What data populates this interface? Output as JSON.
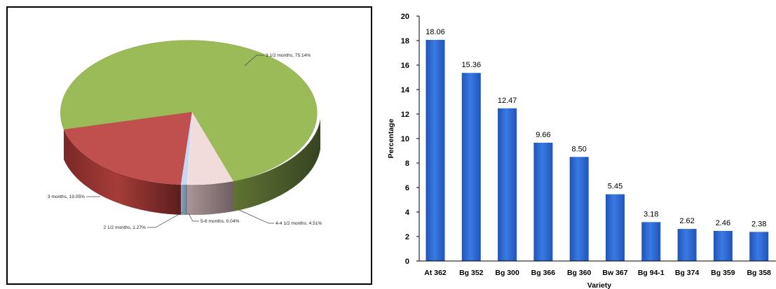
{
  "chart_data": [
    {
      "type": "pie",
      "title": "",
      "slices": [
        {
          "label": "3 1/2 months, 75.14%",
          "value": 75.14,
          "color": "#9BBB59"
        },
        {
          "label": "4-4 1/2 months, 4.51%",
          "value": 4.51,
          "color": "#F2DCDB"
        },
        {
          "label": "5-6 months, 0.04%",
          "value": 0.04,
          "color": "#EEECE1"
        },
        {
          "label": "2 1/2 months, 1.27%",
          "value": 1.27,
          "color": "#C6D9F1"
        },
        {
          "label": "3 months, 19.05%",
          "value": 19.05,
          "color": "#C0504D"
        }
      ],
      "style": "3d"
    },
    {
      "type": "bar",
      "title": "",
      "categories": [
        "At 362",
        "Bg 352",
        "Bg 300",
        "Bg 366",
        "Bg 360",
        "Bw 367",
        "Bg 94-1",
        "Bg 374",
        "Bg 359",
        "Bg 358"
      ],
      "values": [
        18.06,
        15.36,
        12.47,
        9.66,
        8.5,
        5.45,
        3.18,
        2.62,
        2.46,
        2.38
      ],
      "data_labels": [
        "18.06",
        "15.36",
        "12.47",
        "9.66",
        "8.50",
        "5.45",
        "3.18",
        "2.62",
        "2.46",
        "2.38"
      ],
      "xlabel": "Variety",
      "ylabel": "Percentage",
      "ylim": [
        0,
        20
      ],
      "yticks": [
        "0",
        "2",
        "4",
        "6",
        "8",
        "10",
        "12",
        "14",
        "16",
        "18",
        "20"
      ],
      "bar_color": "#2F6BD6",
      "grid": false
    }
  ]
}
